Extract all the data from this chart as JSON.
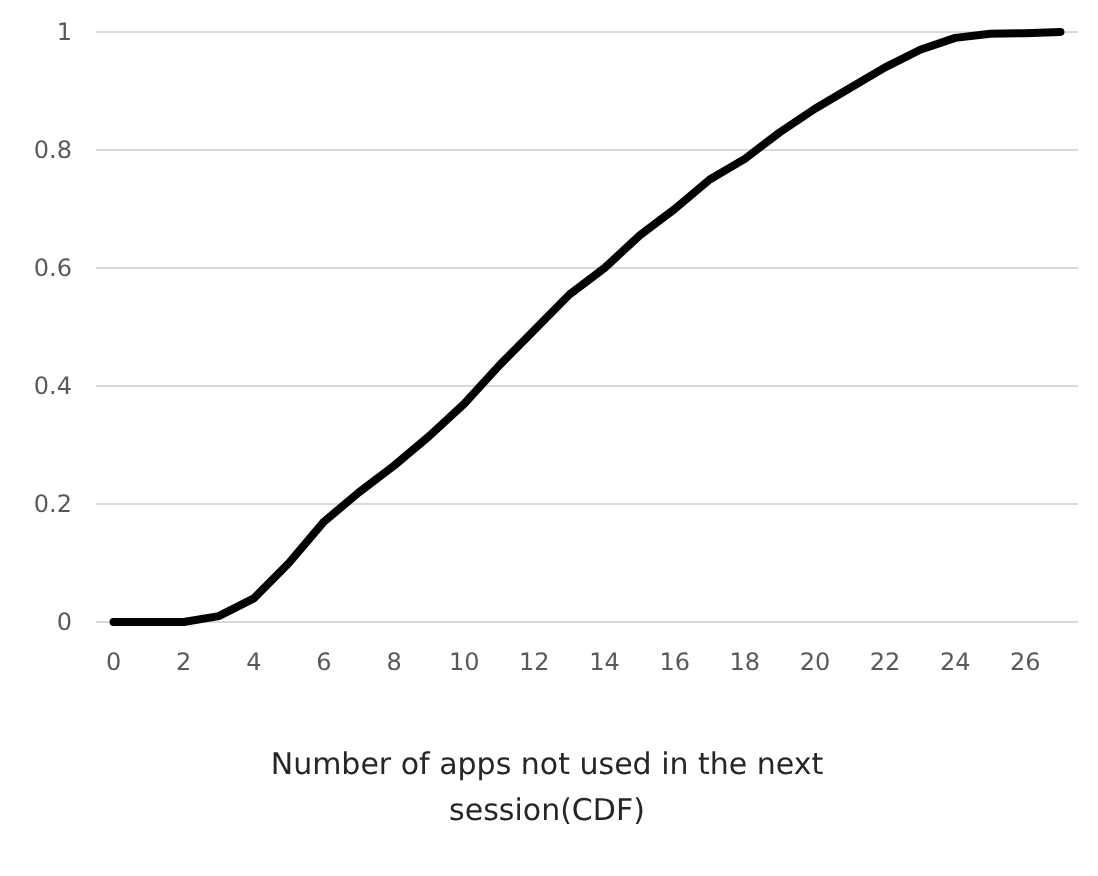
{
  "chart_data": {
    "type": "line",
    "xlabel": "Number of apps not used in the next session(CDF)",
    "x": [
      0,
      1,
      2,
      3,
      4,
      5,
      6,
      7,
      8,
      9,
      10,
      11,
      12,
      13,
      14,
      15,
      16,
      17,
      18,
      19,
      20,
      21,
      22,
      23,
      24,
      25,
      26,
      27
    ],
    "xlim": [
      -0.5,
      27.5
    ],
    "xticks": [
      0,
      2,
      4,
      6,
      8,
      10,
      12,
      14,
      16,
      18,
      20,
      22,
      24,
      26
    ],
    "series": [
      {
        "color": "#000000",
        "values": [
          0,
          0,
          0,
          0.01,
          0.04,
          0.1,
          0.17,
          0.22,
          0.265,
          0.315,
          0.37,
          0.435,
          0.495,
          0.555,
          0.6,
          0.655,
          0.7,
          0.75,
          0.785,
          0.83,
          0.87,
          0.905,
          0.94,
          0.97,
          0.99,
          0.997,
          0.998,
          1
        ]
      }
    ],
    "ylim": [
      0,
      1
    ],
    "yticks": [
      0,
      0.2,
      0.4,
      0.6,
      0.8,
      1
    ],
    "grid": "y",
    "marker": "none",
    "line_style": "solid"
  }
}
